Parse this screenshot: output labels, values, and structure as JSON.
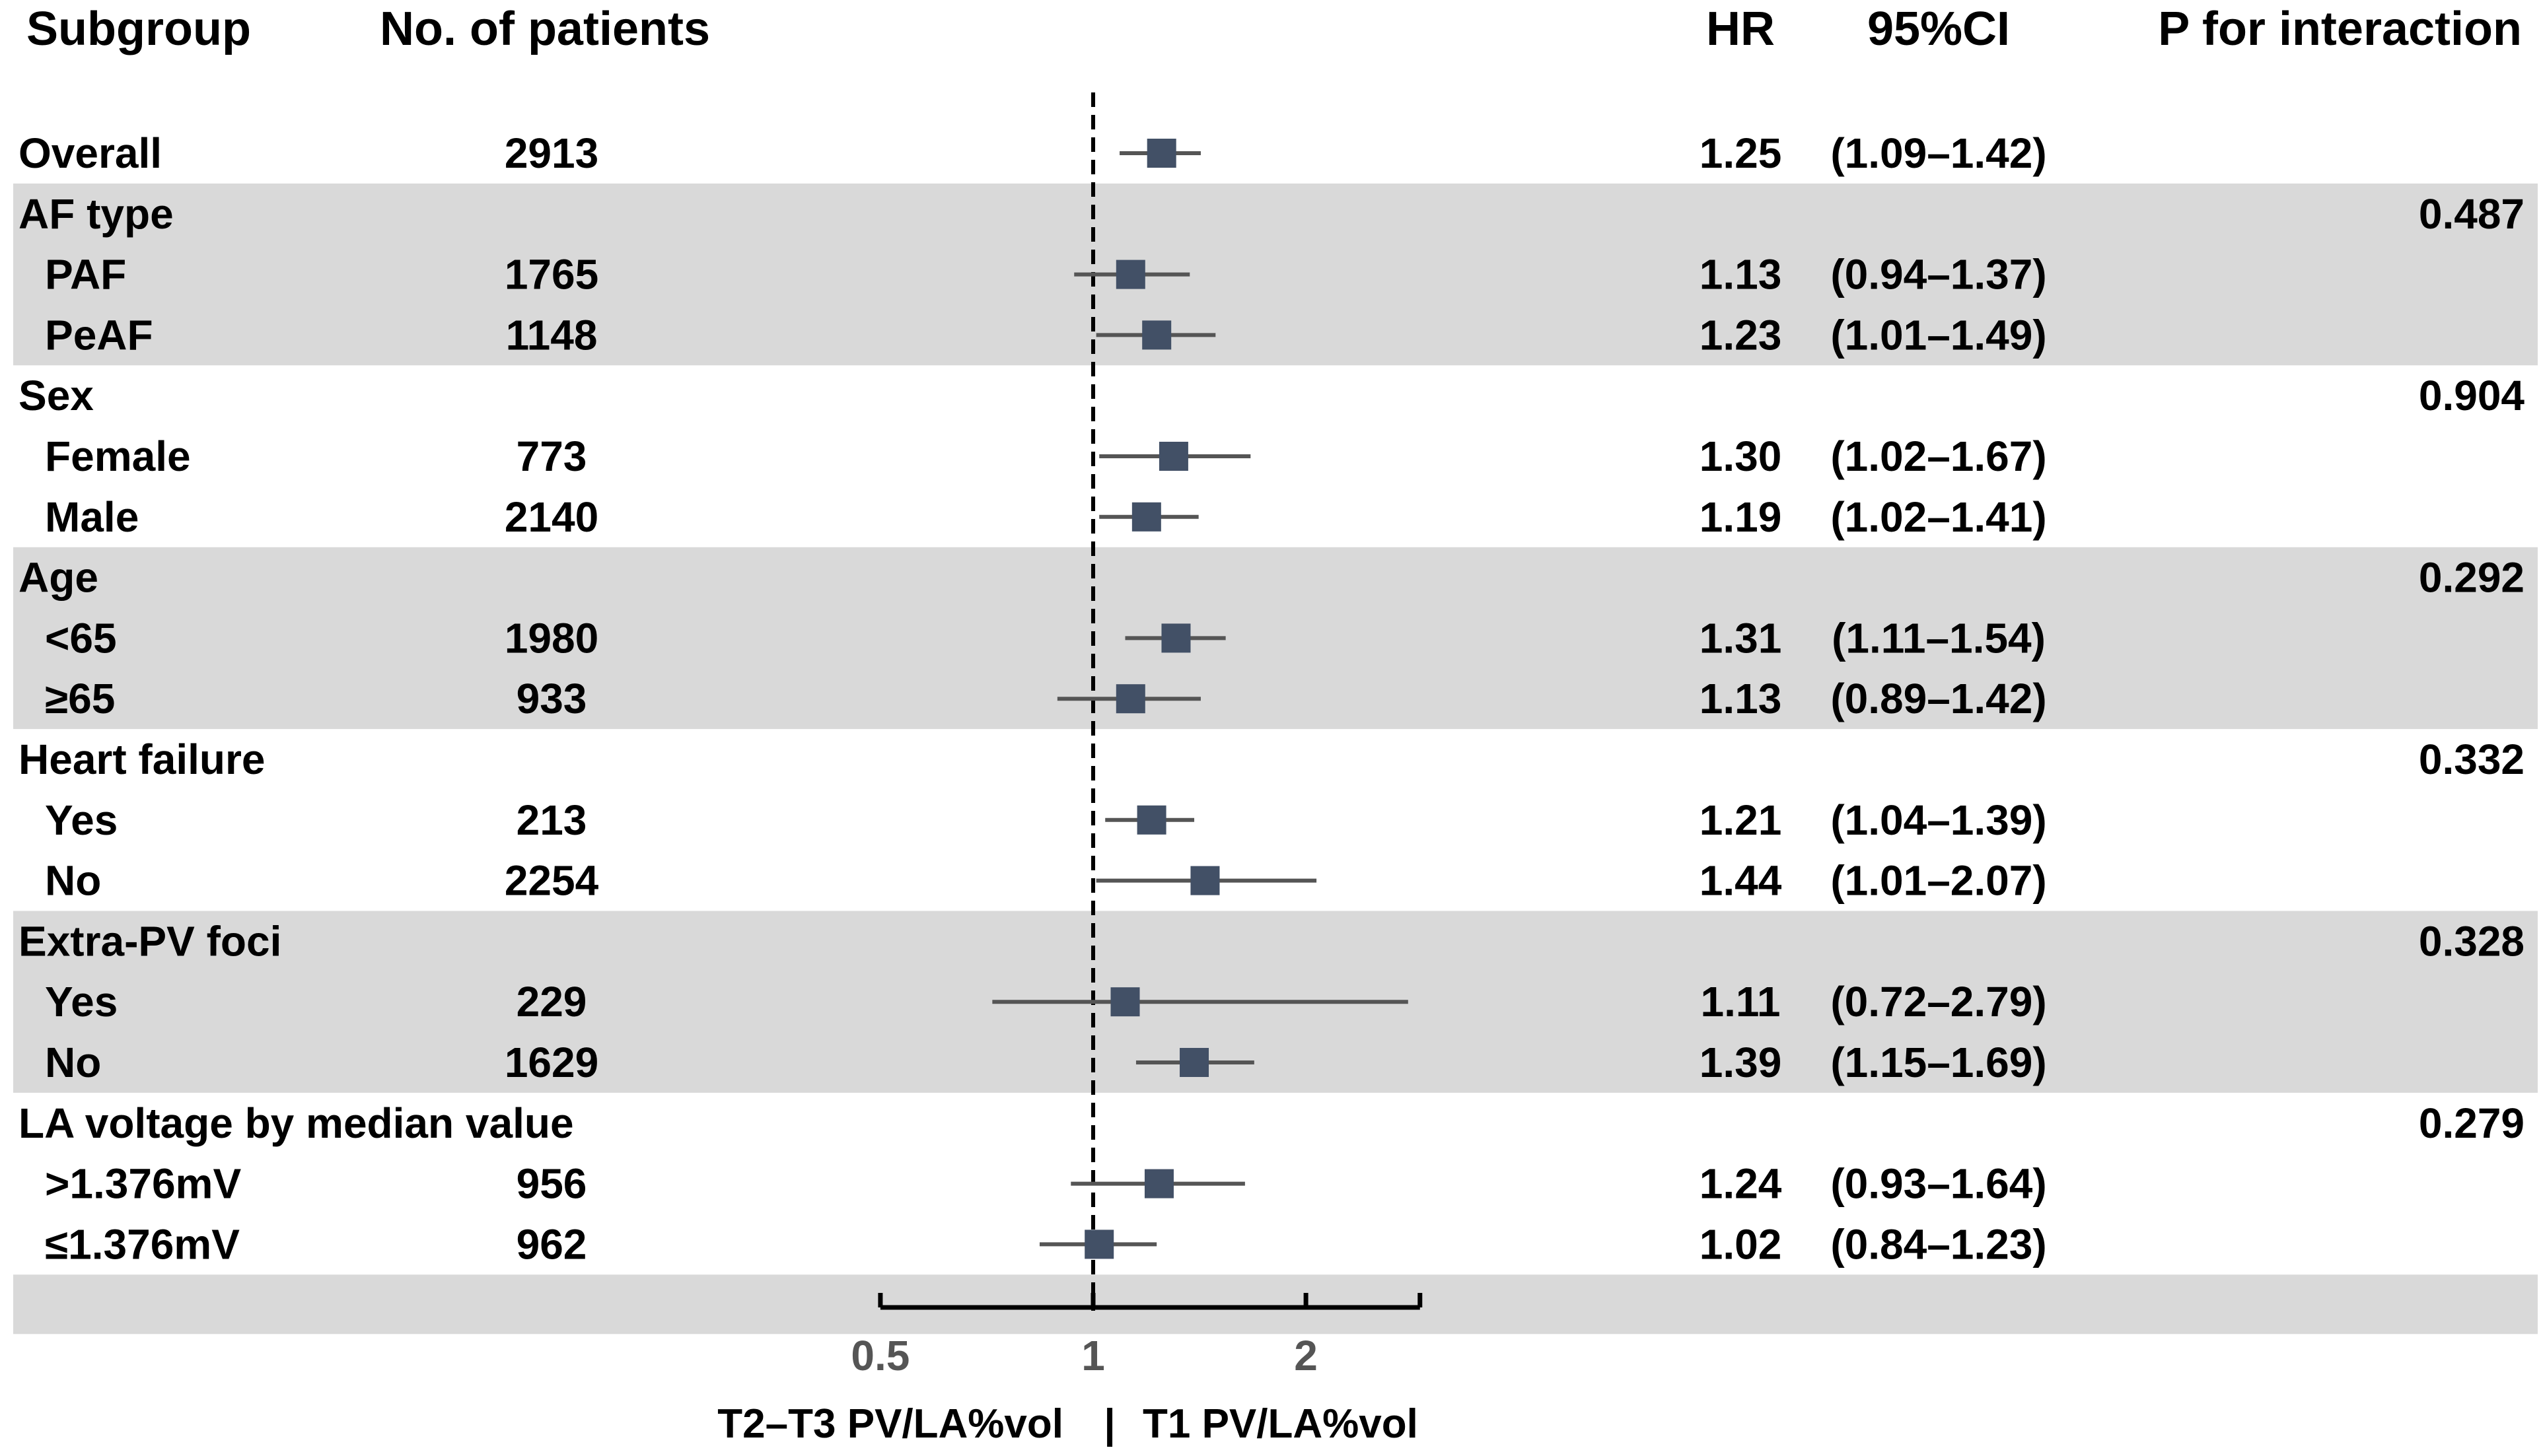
{
  "headers": {
    "subgroup": "Subgroup",
    "patients": "No. of patients",
    "hr": "HR",
    "ci": "95%CI",
    "p": "P for interaction"
  },
  "rows": [
    {
      "label": "Overall",
      "indent": false,
      "n": "2913",
      "hr": "1.25",
      "ci": "(1.09–1.42)",
      "p": "",
      "header": false
    },
    {
      "label": "AF type",
      "indent": false,
      "n": "",
      "hr": "",
      "ci": "",
      "p": "0.487",
      "header": true
    },
    {
      "label": "PAF",
      "indent": true,
      "n": "1765",
      "hr": "1.13",
      "ci": "(0.94–1.37)",
      "p": "",
      "header": false
    },
    {
      "label": "PeAF",
      "indent": true,
      "n": "1148",
      "hr": "1.23",
      "ci": "(1.01–1.49)",
      "p": "",
      "header": false
    },
    {
      "label": "Sex",
      "indent": false,
      "n": "",
      "hr": "",
      "ci": "",
      "p": "0.904",
      "header": true
    },
    {
      "label": "Female",
      "indent": true,
      "n": "773",
      "hr": "1.30",
      "ci": "(1.02–1.67)",
      "p": "",
      "header": false
    },
    {
      "label": "Male",
      "indent": true,
      "n": "2140",
      "hr": "1.19",
      "ci": "(1.02–1.41)",
      "p": "",
      "header": false
    },
    {
      "label": "Age",
      "indent": false,
      "n": "",
      "hr": "",
      "ci": "",
      "p": "0.292",
      "header": true
    },
    {
      "label": "<65",
      "indent": true,
      "n": "1980",
      "hr": "1.31",
      "ci": "(1.11–1.54)",
      "p": "",
      "header": false
    },
    {
      "label": "≥65",
      "indent": true,
      "n": "933",
      "hr": "1.13",
      "ci": "(0.89–1.42)",
      "p": "",
      "header": false
    },
    {
      "label": "Heart failure",
      "indent": false,
      "n": "",
      "hr": "",
      "ci": "",
      "p": "0.332",
      "header": true
    },
    {
      "label": "Yes",
      "indent": true,
      "n": "213",
      "hr": "1.21",
      "ci": "(1.04–1.39)",
      "p": "",
      "header": false
    },
    {
      "label": "No",
      "indent": true,
      "n": "2254",
      "hr": "1.44",
      "ci": "(1.01–2.07)",
      "p": "",
      "header": false
    },
    {
      "label": "Extra-PV foci",
      "indent": false,
      "n": "",
      "hr": "",
      "ci": "",
      "p": "0.328",
      "header": true
    },
    {
      "label": "Yes",
      "indent": true,
      "n": "229",
      "hr": "1.11",
      "ci": "(0.72–2.79)",
      "p": "",
      "header": false
    },
    {
      "label": "No",
      "indent": true,
      "n": "1629",
      "hr": "1.39",
      "ci": "(1.15–1.69)",
      "p": "",
      "header": false
    },
    {
      "label": "LA voltage by median value",
      "indent": false,
      "n": "",
      "hr": "",
      "ci": "",
      "p": "0.279",
      "header": true
    },
    {
      "label": ">1.376mV",
      "indent": true,
      "n": "956",
      "hr": "1.24",
      "ci": "(0.93–1.64)",
      "p": "",
      "header": false
    },
    {
      "label": "≤1.376mV",
      "indent": true,
      "n": "962",
      "hr": "1.02",
      "ci": "(0.84–1.23)",
      "p": "",
      "header": false
    }
  ],
  "chart_data": {
    "type": "forest",
    "x_scale": "log",
    "xlim": [
      0.5,
      2.9
    ],
    "reference_line": 1,
    "xticks": [
      0.5,
      1,
      2
    ],
    "xtick_labels": [
      "0.5",
      "1",
      "2"
    ],
    "x_caption_left": "T2–T3 PV/LA%vol",
    "x_caption_sep": "|",
    "x_caption_right": "T1 PV/LA%vol",
    "points": [
      {
        "row": 0,
        "hr": 1.25,
        "lo": 1.09,
        "hi": 1.42
      },
      {
        "row": 2,
        "hr": 1.13,
        "lo": 0.94,
        "hi": 1.37
      },
      {
        "row": 3,
        "hr": 1.23,
        "lo": 1.01,
        "hi": 1.49
      },
      {
        "row": 5,
        "hr": 1.3,
        "lo": 1.02,
        "hi": 1.67
      },
      {
        "row": 6,
        "hr": 1.19,
        "lo": 1.02,
        "hi": 1.41
      },
      {
        "row": 8,
        "hr": 1.31,
        "lo": 1.11,
        "hi": 1.54
      },
      {
        "row": 9,
        "hr": 1.13,
        "lo": 0.89,
        "hi": 1.42
      },
      {
        "row": 11,
        "hr": 1.21,
        "lo": 1.04,
        "hi": 1.39
      },
      {
        "row": 12,
        "hr": 1.44,
        "lo": 1.01,
        "hi": 2.07
      },
      {
        "row": 14,
        "hr": 1.11,
        "lo": 0.72,
        "hi": 2.79
      },
      {
        "row": 15,
        "hr": 1.39,
        "lo": 1.15,
        "hi": 1.69
      },
      {
        "row": 17,
        "hr": 1.24,
        "lo": 0.93,
        "hi": 1.64
      },
      {
        "row": 18,
        "hr": 1.02,
        "lo": 0.84,
        "hi": 1.23
      }
    ],
    "marker_color": "#425066",
    "ci_color": "#555555",
    "band_color": "#d9d9d9"
  }
}
